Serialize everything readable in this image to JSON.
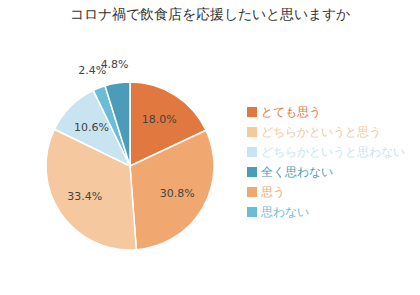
{
  "chart_data": {
    "type": "pie",
    "title": "コロナ禍で飲食店を応援したいと思いますか",
    "categories": [
      "とても思う",
      "思う",
      "どちらかというと思う",
      "どちらかというと思わない",
      "思わない",
      "全く思わない"
    ],
    "values": [
      18.0,
      30.8,
      33.4,
      10.6,
      2.4,
      4.8
    ],
    "value_labels": [
      "18.0%",
      "30.8%",
      "33.4%",
      "10.6%",
      "2.4%",
      "4.8%"
    ],
    "colors": [
      "#E07840",
      "#F0A870",
      "#F5C8A0",
      "#C8E4F0",
      "#6BBCD4",
      "#4A9CB8"
    ],
    "data_labels": true,
    "legend": "right"
  }
}
